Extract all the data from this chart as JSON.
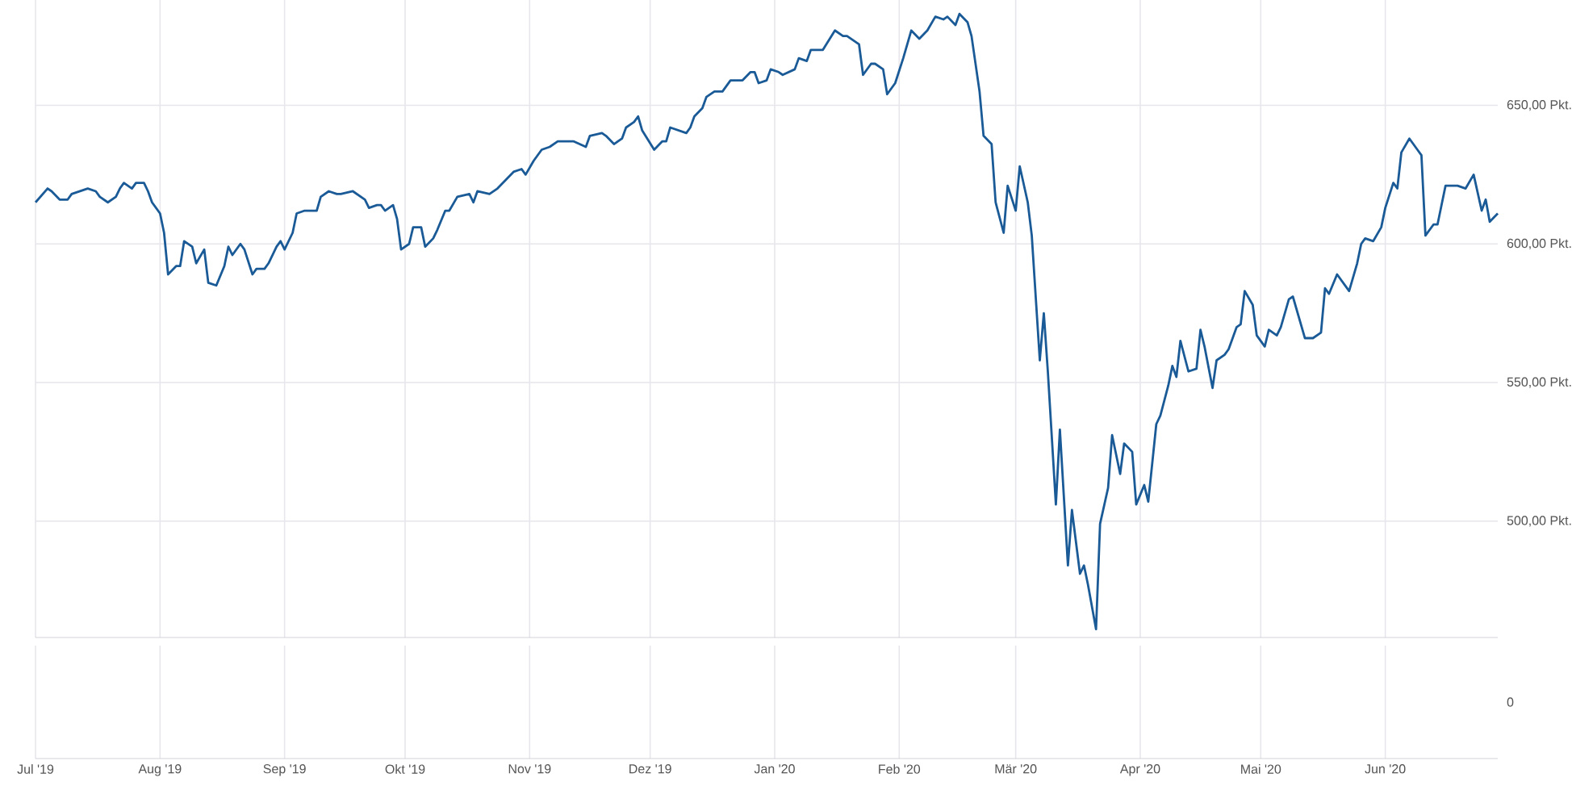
{
  "chart_data": {
    "type": "line",
    "color": "#1a5a96",
    "grid": true,
    "marker": "none",
    "line_style": "solid",
    "annotations": [
      "0"
    ],
    "xlim": [
      "2019-07-01",
      "2020-06-29"
    ],
    "ylim": [
      458,
      688
    ],
    "xticks": [
      {
        "value": "2019-07-01",
        "label": "Jul '19"
      },
      {
        "value": "2019-08-01",
        "label": "Aug '19"
      },
      {
        "value": "2019-09-01",
        "label": "Sep '19"
      },
      {
        "value": "2019-10-01",
        "label": "Okt '19"
      },
      {
        "value": "2019-11-01",
        "label": "Nov '19"
      },
      {
        "value": "2019-12-01",
        "label": "Dez '19"
      },
      {
        "value": "2020-01-01",
        "label": "Jan '20"
      },
      {
        "value": "2020-02-01",
        "label": "Feb '20"
      },
      {
        "value": "2020-03-01",
        "label": "Mär '20"
      },
      {
        "value": "2020-04-01",
        "label": "Apr '20"
      },
      {
        "value": "2020-05-01",
        "label": "Mai '20"
      },
      {
        "value": "2020-06-01",
        "label": "Jun '20"
      }
    ],
    "yticks": [
      {
        "value": 500,
        "label": "500,00 Pkt."
      },
      {
        "value": 550,
        "label": "550,00 Pkt."
      },
      {
        "value": 600,
        "label": "600,00 Pkt."
      },
      {
        "value": 650,
        "label": "650,00 Pkt."
      }
    ],
    "x": [
      "2019-07-01",
      "2019-07-04",
      "2019-07-05",
      "2019-07-07",
      "2019-07-09",
      "2019-07-10",
      "2019-07-14",
      "2019-07-16",
      "2019-07-17",
      "2019-07-19",
      "2019-07-21",
      "2019-07-22",
      "2019-07-23",
      "2019-07-25",
      "2019-07-26",
      "2019-07-28",
      "2019-07-29",
      "2019-07-30",
      "2019-08-01",
      "2019-08-02",
      "2019-08-03",
      "2019-08-05",
      "2019-08-06",
      "2019-08-07",
      "2019-08-09",
      "2019-08-10",
      "2019-08-12",
      "2019-08-13",
      "2019-08-15",
      "2019-08-17",
      "2019-08-18",
      "2019-08-19",
      "2019-08-21",
      "2019-08-22",
      "2019-08-24",
      "2019-08-25",
      "2019-08-27",
      "2019-08-28",
      "2019-08-30",
      "2019-08-31",
      "2019-09-01",
      "2019-09-03",
      "2019-09-04",
      "2019-09-06",
      "2019-09-09",
      "2019-09-10",
      "2019-09-12",
      "2019-09-14",
      "2019-09-15",
      "2019-09-18",
      "2019-09-20",
      "2019-09-21",
      "2019-09-22",
      "2019-09-24",
      "2019-09-25",
      "2019-09-26",
      "2019-09-28",
      "2019-09-29",
      "2019-09-30",
      "2019-10-02",
      "2019-10-03",
      "2019-10-05",
      "2019-10-06",
      "2019-10-08",
      "2019-10-09",
      "2019-10-11",
      "2019-10-12",
      "2019-10-14",
      "2019-10-17",
      "2019-10-18",
      "2019-10-19",
      "2019-10-22",
      "2019-10-24",
      "2019-10-26",
      "2019-10-28",
      "2019-10-30",
      "2019-10-31",
      "2019-11-02",
      "2019-11-04",
      "2019-11-06",
      "2019-11-08",
      "2019-11-11",
      "2019-11-12",
      "2019-11-15",
      "2019-11-16",
      "2019-11-19",
      "2019-11-20",
      "2019-11-22",
      "2019-11-24",
      "2019-11-25",
      "2019-11-27",
      "2019-11-28",
      "2019-11-29",
      "2019-12-02",
      "2019-12-04",
      "2019-12-05",
      "2019-12-06",
      "2019-12-10",
      "2019-12-11",
      "2019-12-12",
      "2019-12-14",
      "2019-12-15",
      "2019-12-17",
      "2019-12-19",
      "2019-12-21",
      "2019-12-24",
      "2019-12-26",
      "2019-12-27",
      "2019-12-28",
      "2019-12-30",
      "2019-12-31",
      "2020-01-02",
      "2020-01-03",
      "2020-01-06",
      "2020-01-07",
      "2020-01-09",
      "2020-01-10",
      "2020-01-13",
      "2020-01-16",
      "2020-01-18",
      "2020-01-19",
      "2020-01-22",
      "2020-01-23",
      "2020-01-25",
      "2020-01-26",
      "2020-01-28",
      "2020-01-29",
      "2020-01-31",
      "2020-02-02",
      "2020-02-04",
      "2020-02-06",
      "2020-02-08",
      "2020-02-10",
      "2020-02-12",
      "2020-02-13",
      "2020-02-15",
      "2020-02-16",
      "2020-02-18",
      "2020-02-19",
      "2020-02-21",
      "2020-02-22",
      "2020-02-24",
      "2020-02-25",
      "2020-02-27",
      "2020-02-28",
      "2020-03-01",
      "2020-03-02",
      "2020-03-04",
      "2020-03-05",
      "2020-03-07",
      "2020-03-08",
      "2020-03-09",
      "2020-03-11",
      "2020-03-12",
      "2020-03-14",
      "2020-03-15",
      "2020-03-17",
      "2020-03-18",
      "2020-03-19",
      "2020-03-21",
      "2020-03-22",
      "2020-03-24",
      "2020-03-25",
      "2020-03-27",
      "2020-03-28",
      "2020-03-30",
      "2020-03-31",
      "2020-04-02",
      "2020-04-03",
      "2020-04-05",
      "2020-04-06",
      "2020-04-08",
      "2020-04-09",
      "2020-04-10",
      "2020-04-11",
      "2020-04-13",
      "2020-04-15",
      "2020-04-16",
      "2020-04-17",
      "2020-04-19",
      "2020-04-20",
      "2020-04-22",
      "2020-04-23",
      "2020-04-25",
      "2020-04-26",
      "2020-04-27",
      "2020-04-29",
      "2020-04-30",
      "2020-05-02",
      "2020-05-03",
      "2020-05-05",
      "2020-05-06",
      "2020-05-08",
      "2020-05-09",
      "2020-05-12",
      "2020-05-14",
      "2020-05-16",
      "2020-05-17",
      "2020-05-18",
      "2020-05-20",
      "2020-05-22",
      "2020-05-23",
      "2020-05-25",
      "2020-05-26",
      "2020-05-27",
      "2020-05-29",
      "2020-05-31",
      "2020-06-01",
      "2020-06-03",
      "2020-06-04",
      "2020-06-05",
      "2020-06-07",
      "2020-06-09",
      "2020-06-10",
      "2020-06-11",
      "2020-06-13",
      "2020-06-14",
      "2020-06-16",
      "2020-06-19",
      "2020-06-21",
      "2020-06-23",
      "2020-06-25",
      "2020-06-26",
      "2020-06-27",
      "2020-06-29"
    ],
    "values": [
      615,
      620,
      619,
      616,
      616,
      618,
      620,
      619,
      617,
      615,
      617,
      620,
      622,
      620,
      622,
      622,
      619,
      615,
      611,
      604,
      589,
      592,
      592,
      601,
      599,
      593,
      598,
      586,
      585,
      592,
      599,
      596,
      600,
      598,
      589,
      591,
      591,
      593,
      599,
      601,
      598,
      604,
      611,
      612,
      612,
      617,
      619,
      618,
      618,
      619,
      617,
      616,
      613,
      614,
      614,
      612,
      614,
      609,
      598,
      600,
      606,
      606,
      599,
      602,
      605,
      612,
      612,
      617,
      618,
      615,
      619,
      618,
      620,
      623,
      626,
      627,
      625,
      630,
      634,
      635,
      637,
      637,
      637,
      635,
      639,
      640,
      639,
      636,
      638,
      642,
      644,
      646,
      641,
      634,
      637,
      637,
      642,
      640,
      642,
      646,
      649,
      653,
      655,
      655,
      659,
      659,
      662,
      662,
      658,
      659,
      663,
      662,
      661,
      663,
      667,
      666,
      670,
      670,
      677,
      675,
      675,
      672,
      661,
      665,
      665,
      663,
      654,
      658,
      667,
      677,
      674,
      677,
      682,
      681,
      682,
      679,
      683,
      680,
      675,
      655,
      639,
      636,
      615,
      604,
      621,
      612,
      628,
      615,
      603,
      558,
      575,
      554,
      506,
      533,
      484,
      504,
      481,
      484,
      477,
      461,
      499,
      512,
      531,
      517,
      528,
      525,
      506,
      513,
      507,
      535,
      538,
      549,
      556,
      552,
      565,
      554,
      555,
      569,
      563,
      548,
      558,
      560,
      562,
      570,
      571,
      583,
      578,
      567,
      563,
      569,
      567,
      570,
      580,
      581,
      566,
      566,
      568,
      584,
      582,
      589,
      585,
      583,
      593,
      600,
      602,
      601,
      606,
      613,
      622,
      620,
      633,
      638,
      634,
      632,
      603,
      607,
      607,
      621,
      621,
      620,
      625,
      612,
      616,
      608,
      611
    ]
  }
}
